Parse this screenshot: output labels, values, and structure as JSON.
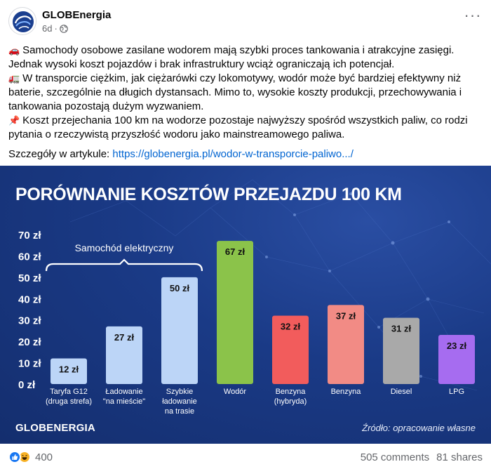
{
  "post": {
    "author": "GLOBEnergia",
    "time": "6d",
    "separator": "·",
    "more_icon": "more-horizontal-icon",
    "paragraphs": [
      {
        "emoji": "🚗",
        "emoji_name": "car-emoji-icon",
        "text": "Samochody osobowe zasilane wodorem mają szybki proces tankowania i atrakcyjne zasięgi. Jednak wysoki koszt pojazdów i brak infrastruktury wciąż ograniczają ich potencjał."
      },
      {
        "emoji": "🚛",
        "emoji_name": "truck-emoji-icon",
        "text": "W transporcie ciężkim, jak ciężarówki czy lokomotywy, wodór może być bardziej efektywny niż baterie, szczególnie na długich dystansach. Mimo to, wysokie koszty produkcji, przechowywania i tankowania pozostają dużym wyzwaniem."
      },
      {
        "emoji": "📌",
        "emoji_name": "pushpin-emoji-icon",
        "text": "Koszt przejechania 100 km na wodorze pozostaje najwyższy spośród wszystkich paliw, co rodzi pytania o rzeczywistą przyszłość wodoru jako mainstreamowego paliwa."
      }
    ],
    "link_prefix": "Szczegóły w artykule: ",
    "link_text": "https://globenergia.pl/wodor-w-transporcie-paliwo.../"
  },
  "infographic": {
    "brand": "GLOBENERGIA",
    "source": "Źródło: opracowanie własne",
    "group_label": "Samochód elektryczny"
  },
  "chart_data": {
    "type": "bar",
    "title": "PORÓWNANIE KOSZTÓW PRZEJAZDU 100 KM",
    "xlabel": "",
    "ylabel": "",
    "ylim": [
      0,
      70
    ],
    "yticks": [
      "0 zł",
      "10 zł",
      "20 zł",
      "30 zł",
      "40 zł",
      "50 zł",
      "60 zł",
      "70 zł"
    ],
    "grid": false,
    "unit": "zł",
    "categories": [
      [
        "Taryfa G12",
        "(druga strefa)"
      ],
      [
        "Ładowanie",
        "\"na mieście\""
      ],
      [
        "Szybkie",
        "ładowanie",
        "na trasie"
      ],
      [
        "Wodór"
      ],
      [
        "Benzyna",
        "(hybryda)"
      ],
      [
        "Benzyna"
      ],
      [
        "Diesel"
      ],
      [
        "LPG"
      ]
    ],
    "values": [
      12,
      27,
      50,
      67,
      32,
      37,
      31,
      23
    ],
    "value_labels": [
      "12 zł",
      "27 zł",
      "50 zł",
      "67 zł",
      "32 zł",
      "37 zł",
      "31 zł",
      "23 zł"
    ],
    "colors": [
      "#bcd5f7",
      "#bcd5f7",
      "#bcd5f7",
      "#8bc34a",
      "#f25c5c",
      "#f28b85",
      "#a9a9a9",
      "#a66cf0"
    ]
  },
  "footer": {
    "reaction_count": "400",
    "reaction_icons": [
      "like-reaction-icon",
      "haha-reaction-icon"
    ],
    "comments": "505 comments",
    "shares": "81 shares"
  }
}
